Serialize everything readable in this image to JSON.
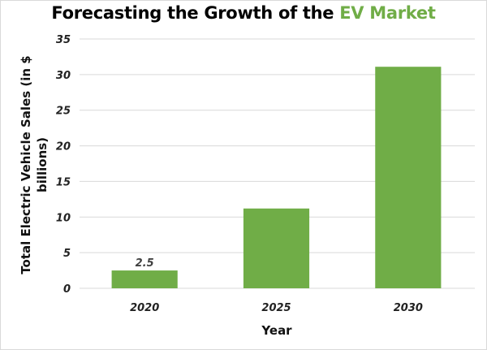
{
  "chart_data": {
    "type": "bar",
    "title": "Forecasting the Growth of the EV Market",
    "title_parts": [
      "Forecasting the Growth of the ",
      "EV Market"
    ],
    "xlabel": "Year",
    "ylabel_lines": [
      "Total Electric Vehicle Sales (in $",
      "billions)"
    ],
    "ylabel": "Total Electric Vehicle Sales (in $ billions)",
    "categories": [
      "2020",
      "2025",
      "2030"
    ],
    "values": [
      2.5,
      11.2,
      31.1
    ],
    "data_labels": [
      {
        "index": 0,
        "text": "2.5"
      }
    ],
    "ylim": [
      0,
      35
    ],
    "yticks": [
      0,
      5,
      10,
      15,
      20,
      25,
      30,
      35
    ],
    "grid": true,
    "legend": "none",
    "colors": {
      "bar": "#70ad47",
      "title_accent": "#70ad47",
      "grid": "#d9d9d9"
    }
  }
}
